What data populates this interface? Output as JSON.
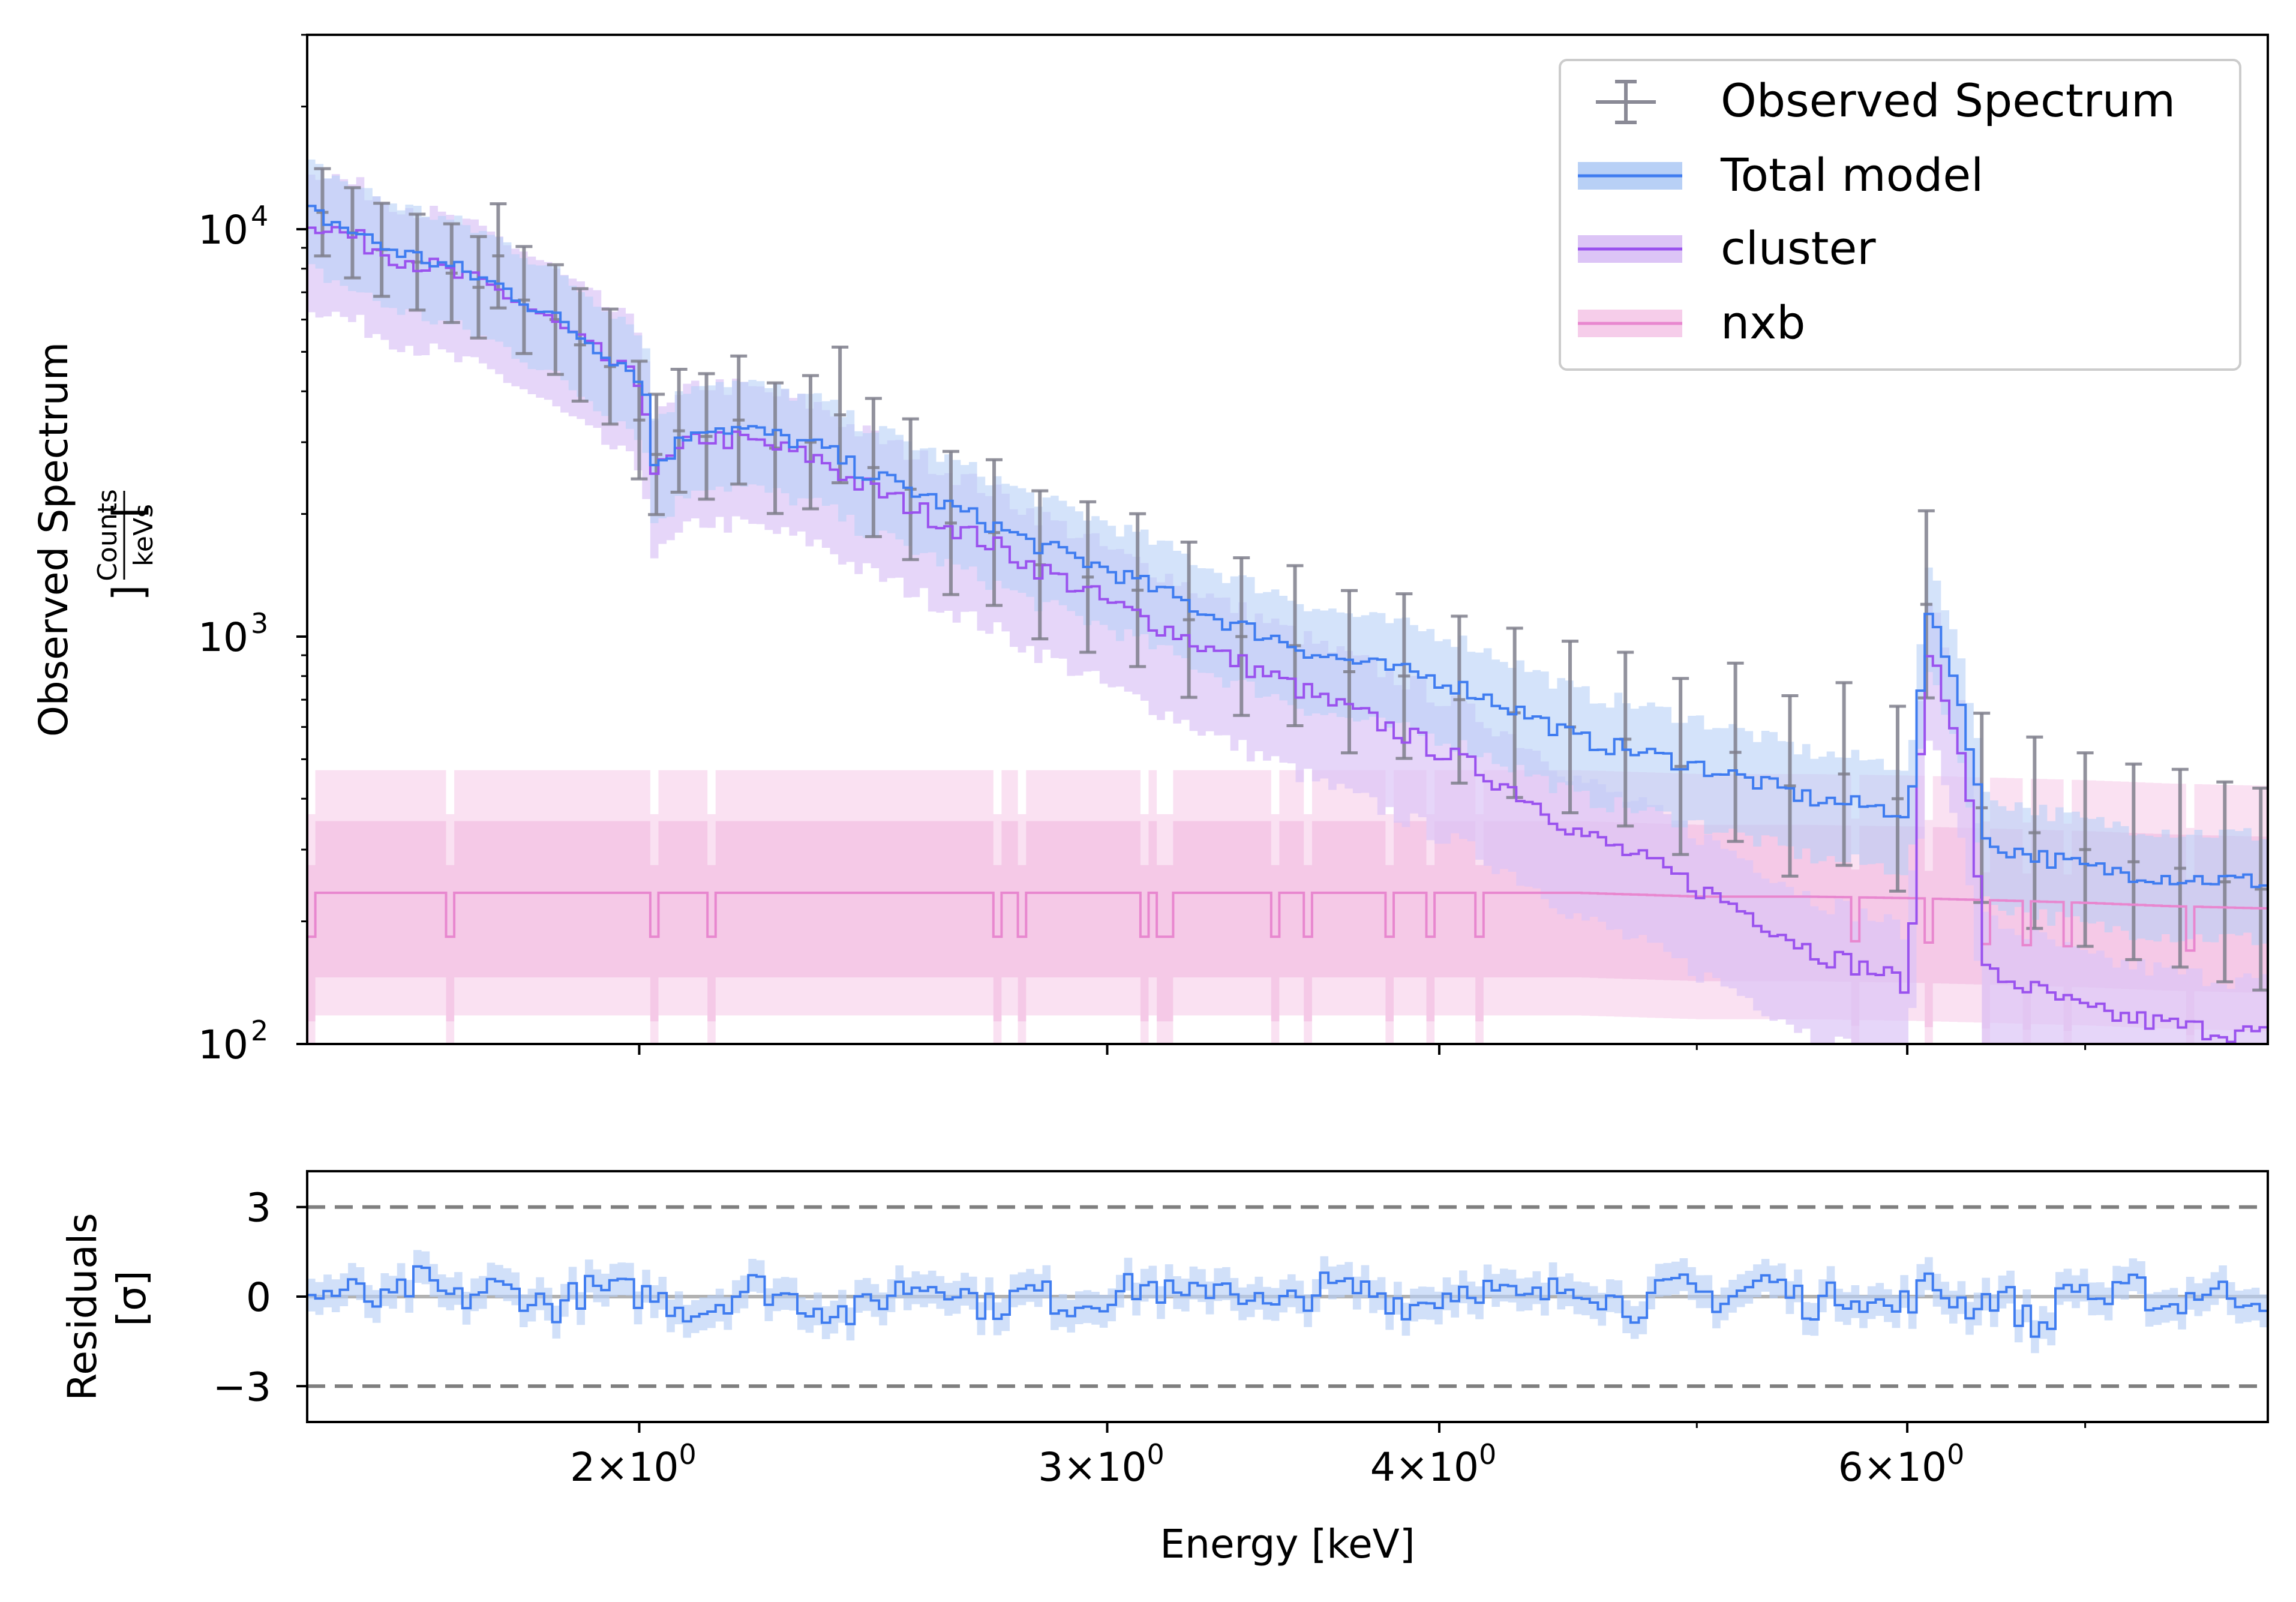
{
  "chart_data": [
    {
      "type": "line",
      "panel": "spectrum",
      "ylabel": "Observed Spectrum",
      "ylabel_unit": {
        "open": "[",
        "numerator": "Counts",
        "denominator": "keVs",
        "close": "]"
      },
      "xscale": "log",
      "yscale": "log",
      "xlim": [
        1.5,
        8.2
      ],
      "ylim": [
        100,
        30000
      ],
      "yticks": [
        {
          "value": 100,
          "base": "10",
          "exp": "2"
        },
        {
          "value": 1000,
          "base": "10",
          "exp": "3"
        },
        {
          "value": 10000,
          "base": "10",
          "exp": "4"
        }
      ],
      "legend": {
        "position": "top-right",
        "entries": [
          {
            "label": "Observed Spectrum",
            "kind": "errorbar",
            "color": "#8a8a96"
          },
          {
            "label": "Total model",
            "kind": "band-line",
            "color": "#3f7cf0",
            "band": "#b8d0f6"
          },
          {
            "label": "cluster",
            "kind": "band-line",
            "color": "#9a52ee",
            "band": "#dcc4f6"
          },
          {
            "label": "nxb",
            "kind": "band-line",
            "color": "#e887cf",
            "band": "#f6cdea"
          }
        ]
      },
      "colors": {
        "observed": "#7f7f8c",
        "total": "#3f7cf0",
        "cluster": "#9a52ee",
        "nxb": "#e887cf"
      },
      "series": [
        {
          "name": "Total model",
          "x": [
            1.5,
            1.6,
            1.7,
            1.77,
            1.9,
            2.0,
            2.02,
            2.1,
            2.2,
            2.34,
            2.4,
            2.6,
            2.8,
            3.0,
            3.3,
            3.6,
            4.0,
            4.5,
            5.0,
            5.5,
            6.0,
            6.1,
            6.4,
            7.0,
            7.6,
            8.2
          ],
          "values": [
            11000,
            9000,
            8000,
            7200,
            5400,
            4300,
            2600,
            3300,
            3200,
            2900,
            2600,
            2100,
            1700,
            1450,
            1100,
            900,
            780,
            560,
            480,
            400,
            370,
            1150,
            310,
            270,
            255,
            250
          ]
        },
        {
          "name": "cluster",
          "x": [
            1.5,
            1.6,
            1.7,
            1.77,
            1.9,
            2.0,
            2.02,
            2.1,
            2.2,
            2.34,
            2.4,
            2.6,
            2.8,
            3.0,
            3.3,
            3.6,
            4.0,
            4.5,
            5.0,
            5.5,
            6.0,
            6.1,
            6.4,
            7.0,
            7.6,
            8.2
          ],
          "values": [
            10500,
            8800,
            7700,
            7000,
            5200,
            4100,
            2500,
            3100,
            3000,
            2700,
            2400,
            1900,
            1500,
            1200,
            900,
            700,
            520,
            330,
            240,
            170,
            140,
            950,
            150,
            120,
            110,
            105
          ]
        },
        {
          "name": "nxb",
          "x": [
            1.5,
            1.8,
            2.0,
            2.5,
            3.0,
            3.5,
            4.0,
            4.5,
            5.0,
            5.5,
            6.0,
            6.5,
            7.0,
            7.5,
            8.2
          ],
          "values": [
            235,
            235,
            235,
            235,
            235,
            235,
            235,
            235,
            230,
            230,
            228,
            225,
            222,
            218,
            215
          ]
        },
        {
          "name": "Observed Spectrum",
          "x": [
            1.52,
            1.56,
            1.6,
            1.65,
            1.7,
            1.74,
            1.77,
            1.81,
            1.86,
            1.9,
            1.95,
            2.0,
            2.03,
            2.07,
            2.12,
            2.18,
            2.25,
            2.32,
            2.38,
            2.45,
            2.53,
            2.62,
            2.72,
            2.83,
            2.95,
            3.08,
            3.22,
            3.37,
            3.53,
            3.7,
            3.88,
            4.07,
            4.27,
            4.48,
            4.7,
            4.93,
            5.17,
            5.42,
            5.68,
            5.95,
            6.1,
            6.4,
            6.7,
            7.0,
            7.3,
            7.6,
            7.9,
            8.15
          ],
          "values": [
            11000,
            9800,
            8900,
            8300,
            7800,
            7200,
            8600,
            6700,
            6000,
            5200,
            4600,
            3400,
            2800,
            3200,
            3100,
            3400,
            2900,
            3000,
            3500,
            2600,
            2300,
            1900,
            1800,
            1500,
            1400,
            1300,
            1100,
            1000,
            950,
            820,
            800,
            700,
            650,
            600,
            560,
            480,
            520,
            430,
            460,
            400,
            1200,
            380,
            330,
            300,
            280,
            270,
            250,
            240
          ]
        }
      ]
    },
    {
      "type": "line",
      "panel": "residuals",
      "ylabel": "Residuals",
      "ylabel_unit": "[σ]",
      "xlabel": "Energy [keV]",
      "xscale": "log",
      "xlim": [
        1.5,
        8.2
      ],
      "ylim": [
        -4.2,
        4.2
      ],
      "yticks": [
        "3",
        "0",
        "−3"
      ],
      "ytick_values": [
        3,
        0,
        -3
      ],
      "xticks": [
        {
          "value": 2,
          "mant": "2",
          "base": "10",
          "exp": "0"
        },
        {
          "value": 3,
          "mant": "3",
          "base": "10",
          "exp": "0"
        },
        {
          "value": 4,
          "mant": "4",
          "base": "10",
          "exp": "0"
        },
        {
          "value": 6,
          "mant": "6",
          "base": "10",
          "exp": "0"
        }
      ],
      "reference_lines": [
        3,
        0,
        -3
      ],
      "series": [
        {
          "name": "Total model",
          "x": [
            1.5,
            1.55,
            1.6,
            1.65,
            1.7,
            1.75,
            1.8,
            1.85,
            1.9,
            2.0,
            2.1,
            2.2,
            2.3,
            2.4,
            2.5,
            2.6,
            2.7,
            2.8,
            2.9,
            3.0,
            3.1,
            3.2,
            3.3,
            3.45,
            3.6,
            3.75,
            3.9,
            4.1,
            4.3,
            4.5,
            4.7,
            4.9,
            5.1,
            5.3,
            5.5,
            5.7,
            5.9,
            6.1,
            6.3,
            6.5,
            6.7,
            6.9,
            7.1,
            7.3,
            7.5,
            7.7,
            7.9,
            8.2
          ],
          "values": [
            0,
            0.2,
            -0.3,
            0.6,
            -0.2,
            0.3,
            0.1,
            -0.4,
            0.2,
            0.1,
            -0.5,
            0.4,
            -0.2,
            -0.6,
            0.3,
            0.5,
            -0.4,
            0.2,
            -0.3,
            0.1,
            0.4,
            -0.2,
            0.6,
            -0.5,
            0.3,
            0.2,
            -0.3,
            0.4,
            -0.2,
            0.5,
            -0.4,
            0.3,
            -0.1,
            0.6,
            -0.3,
            0.2,
            -0.5,
            0.4,
            -0.3,
            0.1,
            -1.2,
            0.5,
            -0.2,
            0.3,
            -0.4,
            0.2,
            0.1,
            0
          ]
        }
      ]
    }
  ]
}
